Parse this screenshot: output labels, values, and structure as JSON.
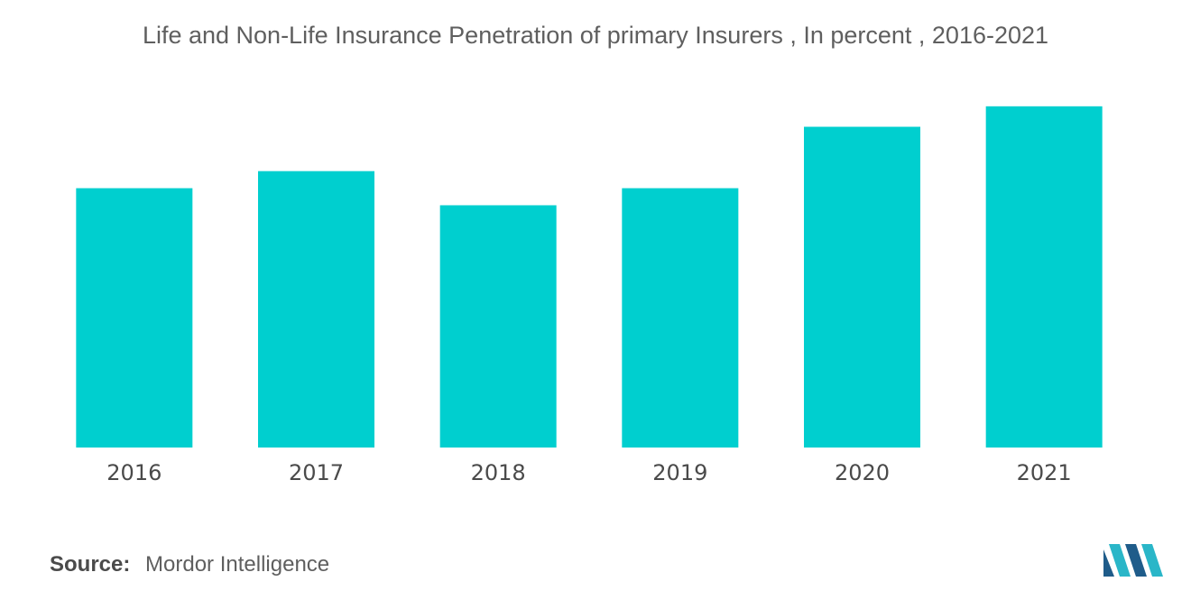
{
  "chart_data": {
    "type": "bar",
    "title": "Life and Non-Life Insurance Penetration of primary Insurers , In percent , 2016-2021",
    "categories": [
      "2016",
      "2017",
      "2018",
      "2019",
      "2020",
      "2021"
    ],
    "values": [
      7.6,
      8.1,
      7.1,
      7.6,
      9.4,
      10.0
    ],
    "xlabel": "",
    "ylabel": "",
    "ylim": [
      0,
      11
    ],
    "grid": false,
    "legend": "none",
    "bar_color": "#00cfcf"
  },
  "source": {
    "label": "Source:",
    "text": "Mordor Intelligence"
  },
  "logo": {
    "icon": "mordor-intelligence-logo",
    "colors": [
      "#1f5c8a",
      "#2ab6c8"
    ]
  }
}
